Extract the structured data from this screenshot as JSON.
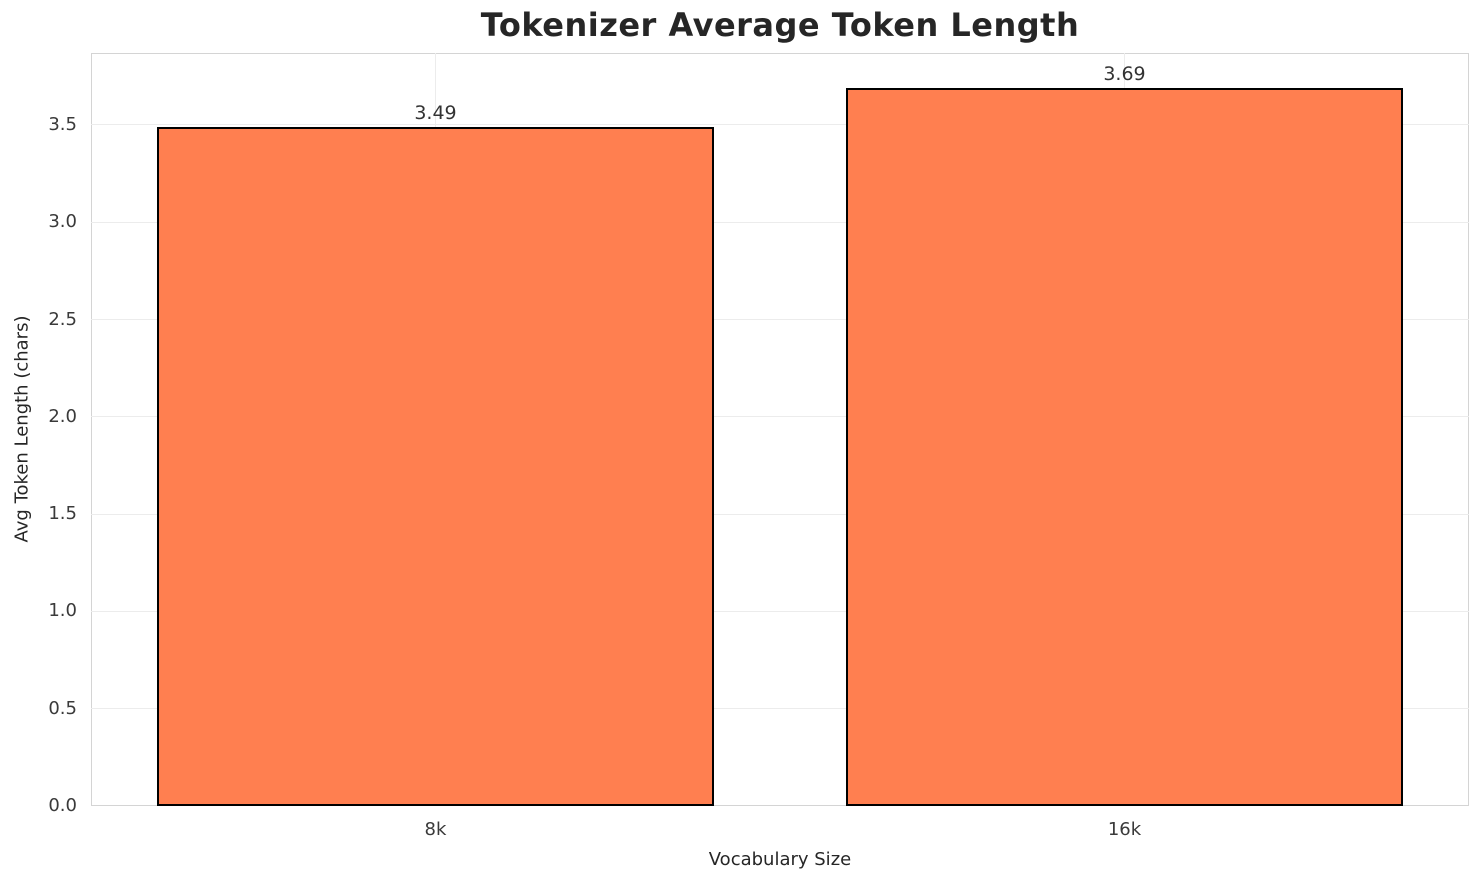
{
  "chart_data": {
    "type": "bar",
    "title": "Tokenizer Average Token Length",
    "xlabel": "Vocabulary Size",
    "ylabel": "Avg Token Length (chars)",
    "categories": [
      "8k",
      "16k"
    ],
    "values": [
      3.49,
      3.69
    ],
    "value_labels": [
      "3.49",
      "3.69"
    ],
    "ylim": [
      0,
      3.87
    ],
    "yticks": [
      0.0,
      0.5,
      1.0,
      1.5,
      2.0,
      2.5,
      3.0,
      3.5
    ],
    "ytick_labels": [
      "0.0",
      "0.5",
      "1.0",
      "1.5",
      "2.0",
      "2.5",
      "3.0",
      "3.5"
    ],
    "grid": true,
    "legend_position": "none",
    "colors": {
      "bar_fill": "#FF7F50",
      "bar_edge": "#000000",
      "grid_line": "#ececec",
      "axis_border": "#d4d4d4",
      "text": "#262626"
    }
  }
}
